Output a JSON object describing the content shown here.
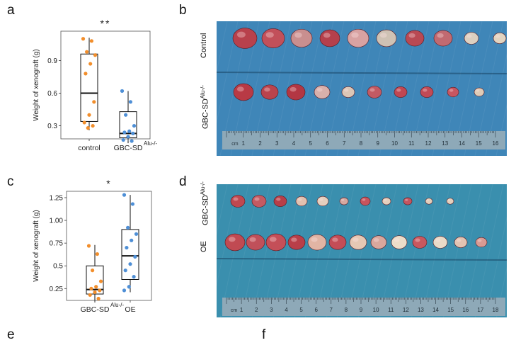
{
  "panels": {
    "a": "a",
    "b": "b",
    "c": "c",
    "d": "d",
    "e": "e",
    "f": "f"
  },
  "chart_data": [
    {
      "type": "box",
      "panel": "a",
      "significance": "**",
      "ylabel": "Weight of xenograft (g)",
      "yticks": [
        "0.3",
        "0.6",
        "0.9"
      ],
      "ylim": [
        0.18,
        1.17
      ],
      "categories": [
        "control",
        "GBC-SD"
      ],
      "category_superscripts": [
        "",
        "Alu-/-"
      ],
      "colors": [
        "#f28e2b",
        "#4e8fd6"
      ],
      "series": [
        {
          "points": [
            1.1,
            1.08,
            0.98,
            0.95,
            0.87,
            0.78,
            0.52,
            0.4,
            0.33,
            0.3,
            0.28
          ],
          "box": {
            "q1": 0.34,
            "median": 0.6,
            "q3": 0.96,
            "min": 0.26,
            "max": 1.11
          }
        },
        {
          "points": [
            0.62,
            0.52,
            0.4,
            0.3,
            0.25,
            0.24,
            0.23,
            0.2,
            0.17,
            0.16
          ],
          "box": {
            "q1": 0.19,
            "median": 0.23,
            "q3": 0.43,
            "min": 0.14,
            "max": 0.62
          }
        }
      ]
    },
    {
      "type": "box",
      "panel": "c",
      "significance": "*",
      "ylabel": "Weight of xenograft (g)",
      "yticks": [
        "0.25",
        "0.5",
        "0.75",
        "1.00",
        "1.25"
      ],
      "ylim": [
        0.12,
        1.32
      ],
      "categories": [
        "GBC-SD",
        "OE"
      ],
      "category_superscripts": [
        "Alu-/-",
        ""
      ],
      "colors": [
        "#f28e2b",
        "#4e8fd6"
      ],
      "series": [
        {
          "points": [
            0.72,
            0.63,
            0.45,
            0.33,
            0.27,
            0.25,
            0.23,
            0.21,
            0.18,
            0.14
          ],
          "box": {
            "q1": 0.19,
            "median": 0.24,
            "q3": 0.5,
            "min": 0.1,
            "max": 0.73
          }
        },
        {
          "points": [
            1.28,
            1.18,
            0.92,
            0.85,
            0.78,
            0.7,
            0.6,
            0.52,
            0.45,
            0.38,
            0.27,
            0.23
          ],
          "box": {
            "q1": 0.35,
            "median": 0.61,
            "q3": 0.9,
            "min": 0.21,
            "max": 1.28
          }
        }
      ]
    }
  ],
  "photo_b": {
    "row_labels": {
      "top": "Control",
      "bottom_main": "GBC-SD",
      "bottom_sup": "Alu-/-"
    },
    "ruler": [
      "1",
      "2",
      "3",
      "4",
      "5",
      "6",
      "7",
      "8",
      "9",
      "10",
      "11",
      "12",
      "13",
      "14",
      "15",
      "16"
    ],
    "ruler_unit": "cm",
    "background": "#3f86b8"
  },
  "photo_d": {
    "row_labels": {
      "top_main": "GBC-SD",
      "top_sup": "Alu-/-",
      "bottom": "OE"
    },
    "ruler": [
      "1",
      "2",
      "3",
      "4",
      "5",
      "6",
      "7",
      "8",
      "9",
      "10",
      "11",
      "12",
      "13",
      "14",
      "15",
      "16",
      "17",
      "18"
    ],
    "ruler_unit": "cm",
    "background": "#3a8fae"
  }
}
